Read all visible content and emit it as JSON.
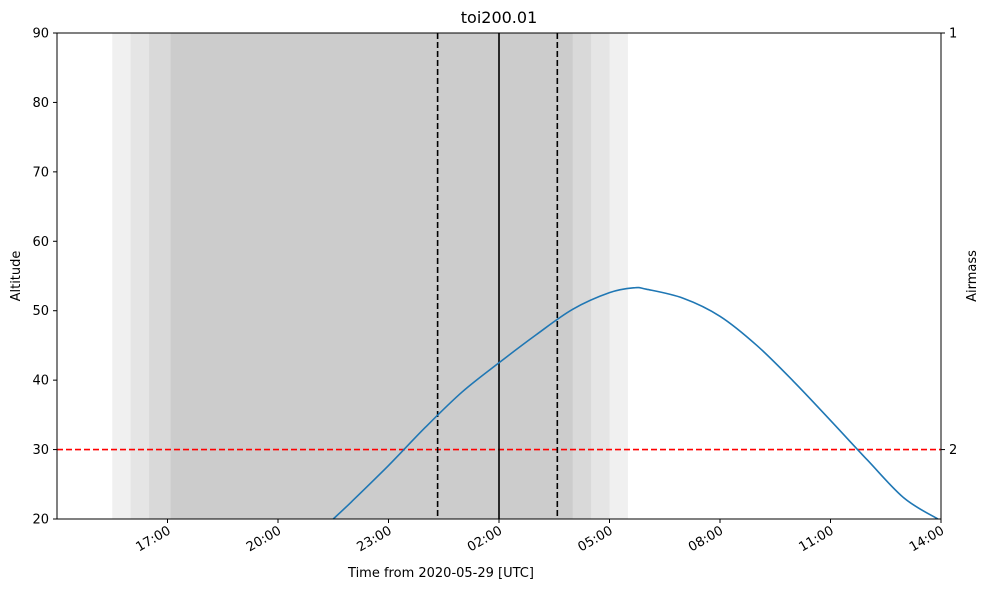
{
  "chart_data": {
    "type": "line",
    "title": "toi200.01",
    "xlabel": "Time from 2020-05-29 [UTC]",
    "ylabel": "Altitude",
    "ylabel_right": "Airmass",
    "ylim": [
      20,
      90
    ],
    "xlim": [
      "2020-05-28 14:00",
      "2020-05-29 14:00"
    ],
    "x_ticks": [
      {
        "time": "2020-05-28 17:00",
        "label": "17:00"
      },
      {
        "time": "2020-05-28 20:00",
        "label": "20:00"
      },
      {
        "time": "2020-05-28 23:00",
        "label": "23:00"
      },
      {
        "time": "2020-05-29 02:00",
        "label": "02:00"
      },
      {
        "time": "2020-05-29 05:00",
        "label": "05:00"
      },
      {
        "time": "2020-05-29 08:00",
        "label": "08:00"
      },
      {
        "time": "2020-05-29 11:00",
        "label": "11:00"
      },
      {
        "time": "2020-05-29 14:00",
        "label": "14:00"
      }
    ],
    "y_ticks": [
      20,
      30,
      40,
      50,
      60,
      70,
      80,
      90
    ],
    "right_ticks": [
      {
        "airmass": 1,
        "altitude": 90,
        "label": "1"
      },
      {
        "airmass": 2,
        "altitude": 30,
        "label": "2"
      }
    ],
    "grid": false,
    "series": [
      {
        "color": "#1f77b4",
        "points": [
          {
            "time": "2020-05-28 21:30",
            "altitude": 20
          },
          {
            "time": "2020-05-28 22:00",
            "altitude": 22.5
          },
          {
            "time": "2020-05-28 23:00",
            "altitude": 27.7
          },
          {
            "time": "2020-05-29 00:00",
            "altitude": 33.2
          },
          {
            "time": "2020-05-29 01:00",
            "altitude": 38.3
          },
          {
            "time": "2020-05-29 02:00",
            "altitude": 42.5
          },
          {
            "time": "2020-05-29 03:00",
            "altitude": 46.5
          },
          {
            "time": "2020-05-29 04:00",
            "altitude": 50.2
          },
          {
            "time": "2020-05-29 05:00",
            "altitude": 52.6
          },
          {
            "time": "2020-05-29 05:40",
            "altitude": 53.3
          },
          {
            "time": "2020-05-29 06:00",
            "altitude": 53.1
          },
          {
            "time": "2020-05-29 07:00",
            "altitude": 51.8
          },
          {
            "time": "2020-05-29 08:00",
            "altitude": 49.2
          },
          {
            "time": "2020-05-29 09:00",
            "altitude": 45.0
          },
          {
            "time": "2020-05-29 10:00",
            "altitude": 39.8
          },
          {
            "time": "2020-05-29 11:00",
            "altitude": 34.2
          },
          {
            "time": "2020-05-29 12:00",
            "altitude": 28.5
          },
          {
            "time": "2020-05-29 13:00",
            "altitude": 23.0
          },
          {
            "time": "2020-05-29 13:55",
            "altitude": 20
          }
        ]
      }
    ],
    "shaded_regions": [
      {
        "start": "2020-05-28 15:30",
        "end": "2020-05-29 05:30",
        "color": "#f0f0f0"
      },
      {
        "start": "2020-05-28 16:00",
        "end": "2020-05-29 05:00",
        "color": "#e5e5e5"
      },
      {
        "start": "2020-05-28 16:30",
        "end": "2020-05-29 04:30",
        "color": "#d9d9d9"
      },
      {
        "start": "2020-05-28 17:05",
        "end": "2020-05-29 04:00",
        "color": "#cccccc"
      }
    ],
    "vertical_lines": [
      {
        "time": "2020-05-29 00:20",
        "style": "dashed",
        "color": "#000000"
      },
      {
        "time": "2020-05-29 02:00",
        "style": "solid",
        "color": "#000000"
      },
      {
        "time": "2020-05-29 03:35",
        "style": "dashed",
        "color": "#000000"
      }
    ],
    "horizontal_lines": [
      {
        "altitude": 30,
        "style": "dashed",
        "color": "#ff0000"
      }
    ]
  }
}
